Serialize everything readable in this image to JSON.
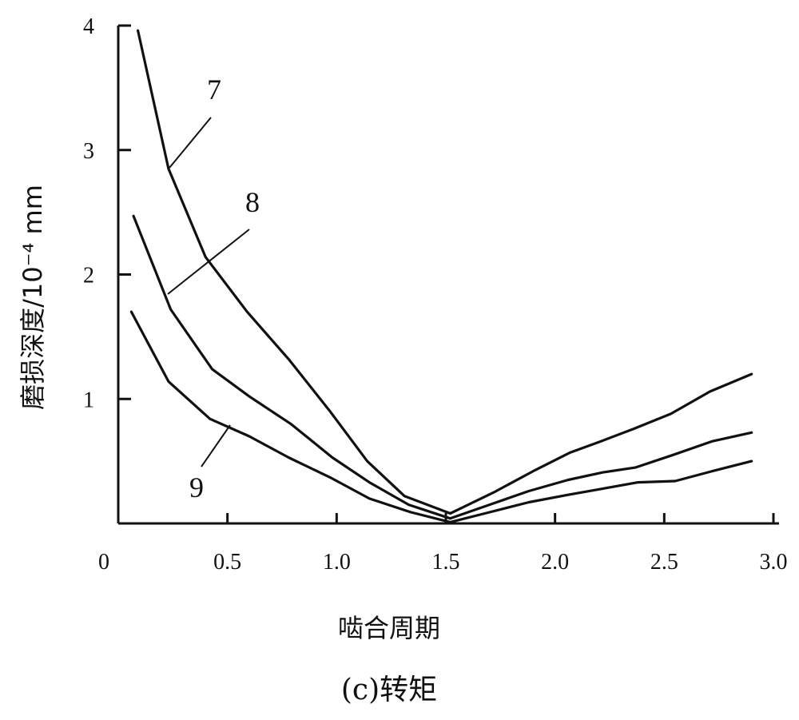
{
  "chart_data": {
    "type": "line",
    "title": "",
    "caption": "(c)转矩",
    "xlabel": "啮合周期",
    "ylabel": "磨损深度/10⁻⁴ mm",
    "xlim": [
      0,
      3.0
    ],
    "ylim": [
      0,
      4
    ],
    "x_ticks": [
      0,
      0.5,
      1.0,
      1.5,
      2.0,
      2.5,
      3.0
    ],
    "x_tick_labels": [
      "0",
      "0.5",
      "1.0",
      "1.5",
      "2.0",
      "2.5",
      "3.0"
    ],
    "y_ticks": [
      1,
      2,
      3,
      4
    ],
    "y_tick_labels": [
      "1",
      "2",
      "3",
      "4"
    ],
    "grid": false,
    "series": [
      {
        "name": "7",
        "x": [
          0.09,
          0.23,
          0.4,
          0.59,
          0.78,
          0.97,
          1.14,
          1.31,
          1.52,
          1.72,
          1.9,
          2.07,
          2.21,
          2.36,
          2.53,
          2.71,
          2.9
        ],
        "y": [
          3.96,
          2.85,
          2.14,
          1.7,
          1.32,
          0.9,
          0.5,
          0.22,
          0.08,
          0.25,
          0.42,
          0.57,
          0.66,
          0.76,
          0.88,
          1.06,
          1.2
        ]
      },
      {
        "name": "8",
        "x": [
          0.07,
          0.24,
          0.43,
          0.6,
          0.79,
          0.98,
          1.15,
          1.33,
          1.52,
          1.7,
          1.88,
          2.06,
          2.22,
          2.37,
          2.54,
          2.72,
          2.9
        ],
        "y": [
          2.47,
          1.72,
          1.24,
          1.02,
          0.8,
          0.53,
          0.33,
          0.15,
          0.04,
          0.15,
          0.26,
          0.35,
          0.41,
          0.45,
          0.55,
          0.66,
          0.73
        ]
      },
      {
        "name": "9",
        "x": [
          0.06,
          0.23,
          0.42,
          0.6,
          0.78,
          0.97,
          1.15,
          1.34,
          1.52,
          1.7,
          1.88,
          2.06,
          2.22,
          2.38,
          2.55,
          2.72,
          2.9
        ],
        "y": [
          1.7,
          1.14,
          0.84,
          0.7,
          0.53,
          0.37,
          0.2,
          0.09,
          0.01,
          0.09,
          0.17,
          0.23,
          0.28,
          0.33,
          0.34,
          0.42,
          0.5
        ]
      }
    ],
    "annotations": [
      {
        "text": "7",
        "series": "7"
      },
      {
        "text": "8",
        "series": "8"
      },
      {
        "text": "9",
        "series": "9"
      }
    ]
  }
}
